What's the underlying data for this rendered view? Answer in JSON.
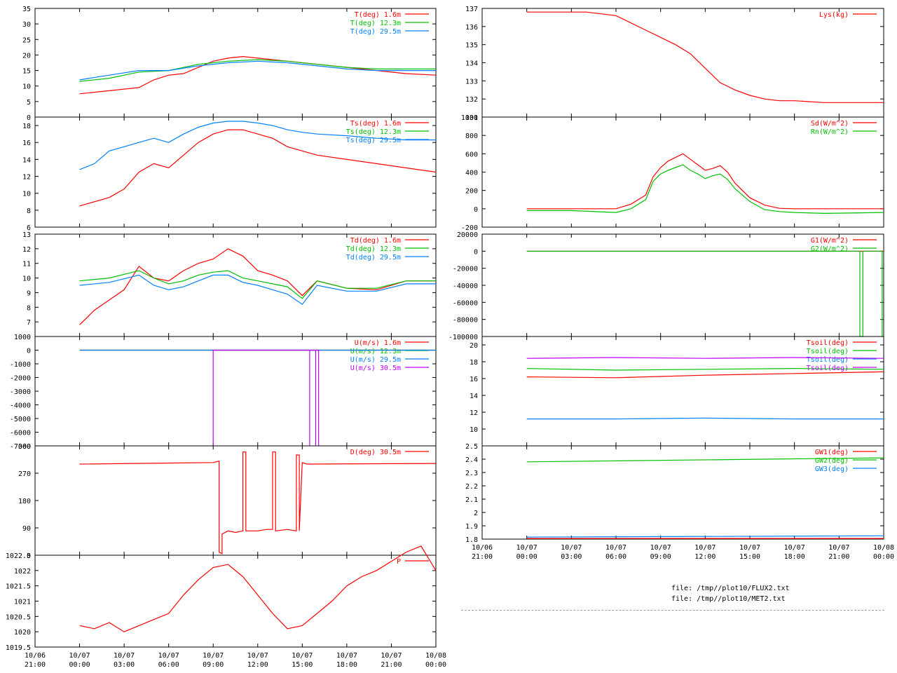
{
  "colors": {
    "red": "#ff0000",
    "green": "#00c000",
    "blue": "#0080ff",
    "purple": "#c000ff",
    "teal": "#008080"
  },
  "x_axis": {
    "ticks": [
      {
        "t": -3,
        "date": "10/06",
        "time": "21:00"
      },
      {
        "t": 0,
        "date": "10/07",
        "time": "00:00"
      },
      {
        "t": 3,
        "date": "10/07",
        "time": "03:00"
      },
      {
        "t": 6,
        "date": "10/07",
        "time": "06:00"
      },
      {
        "t": 9,
        "date": "10/07",
        "time": "09:00"
      },
      {
        "t": 12,
        "date": "10/07",
        "time": "12:00"
      },
      {
        "t": 15,
        "date": "10/07",
        "time": "15:00"
      },
      {
        "t": 18,
        "date": "10/07",
        "time": "18:00"
      },
      {
        "t": 21,
        "date": "10/07",
        "time": "21:00"
      },
      {
        "t": 24,
        "date": "10/08",
        "time": "00:00"
      }
    ]
  },
  "footer": {
    "file1": "file: /tmp//plot10/FLUX2.txt",
    "file2": "file: /tmp//plot10/MET2.txt"
  },
  "chart_data": [
    {
      "type": "line",
      "panel": "T",
      "ylim": [
        0,
        35
      ],
      "yticks": [
        "0",
        "5",
        "10",
        "15",
        "20",
        "25",
        "30",
        "35"
      ],
      "series": [
        {
          "name": "T(deg)  1.6m",
          "color": "#ff0000",
          "x": [
            0,
            2,
            4,
            5,
            6,
            7,
            8,
            9,
            10,
            11,
            12,
            13,
            14,
            15,
            16,
            18,
            20,
            22,
            24
          ],
          "y": [
            7.5,
            8.5,
            9.5,
            12,
            13.5,
            14,
            16,
            18,
            19,
            19.5,
            19,
            18.5,
            18,
            17.5,
            17,
            16,
            15,
            14,
            13.5
          ]
        },
        {
          "name": "T(deg) 12.3m",
          "color": "#00c000",
          "x": [
            0,
            2,
            4,
            6,
            8,
            10,
            12,
            14,
            16,
            18,
            20,
            22,
            24
          ],
          "y": [
            11.5,
            12.5,
            14.5,
            15,
            17,
            18,
            18.5,
            18,
            17,
            16,
            15.5,
            15.5,
            15.5
          ]
        },
        {
          "name": "T(deg) 29.5m",
          "color": "#0080ff",
          "x": [
            0,
            2,
            4,
            6,
            8,
            10,
            12,
            14,
            16,
            18,
            20,
            22,
            24
          ],
          "y": [
            12,
            13.5,
            15,
            15,
            16.5,
            17.5,
            18,
            17.5,
            16.5,
            15.5,
            15,
            15,
            15
          ]
        }
      ]
    },
    {
      "type": "line",
      "panel": "Ts",
      "ylim": [
        6,
        19
      ],
      "yticks": [
        "6",
        "8",
        "10",
        "12",
        "14",
        "16",
        "18"
      ],
      "series": [
        {
          "name": "Ts(deg)  1.6m",
          "color": "#ff0000",
          "x": [
            0,
            2,
            3,
            3.5,
            4,
            5,
            6,
            7,
            8,
            9,
            10,
            11,
            12,
            13,
            14,
            15,
            16,
            18,
            20,
            22,
            24
          ],
          "y": [
            8.5,
            9.5,
            10.5,
            11.5,
            12.5,
            13.5,
            13,
            14.5,
            16,
            17,
            17.5,
            17.5,
            17,
            16.5,
            15.5,
            15,
            14.5,
            14,
            13.5,
            13,
            12.5
          ]
        },
        {
          "name": "Ts(deg) 12.3m",
          "color": "#00c000",
          "x": [],
          "y": []
        },
        {
          "name": "Ts(deg) 29.5m",
          "color": "#0080ff",
          "x": [
            0,
            1,
            2,
            3,
            4,
            5,
            6,
            7,
            8,
            9,
            10,
            11,
            12,
            13,
            14,
            15,
            16,
            18,
            20,
            22,
            24
          ],
          "y": [
            12.8,
            13.5,
            15,
            15.5,
            16,
            16.5,
            16,
            17,
            17.8,
            18.3,
            18.5,
            18.5,
            18.3,
            18,
            17.5,
            17.2,
            17,
            16.8,
            16.5,
            16.3,
            16.3
          ]
        }
      ]
    },
    {
      "type": "line",
      "panel": "Td",
      "ylim": [
        6,
        13
      ],
      "yticks": [
        "7",
        "8",
        "9",
        "10",
        "11",
        "12",
        "13"
      ],
      "series": [
        {
          "name": "Td(deg)  1.6m",
          "color": "#ff0000",
          "x": [
            0,
            1,
            2,
            3,
            4,
            5,
            6,
            7,
            8,
            9,
            10,
            11,
            12,
            13,
            14,
            15,
            16,
            18,
            20,
            22,
            24
          ],
          "y": [
            6.8,
            7.8,
            8.5,
            9.2,
            10.8,
            10,
            9.8,
            10.5,
            11,
            11.3,
            12,
            11.5,
            10.5,
            10.2,
            9.8,
            8.8,
            9.8,
            9.3,
            9.2,
            9.8,
            9.8
          ]
        },
        {
          "name": "Td(deg) 12.3m",
          "color": "#00c000",
          "x": [
            0,
            2,
            4,
            5,
            6,
            7,
            8,
            9,
            10,
            11,
            12,
            13,
            14,
            15,
            16,
            18,
            20,
            22,
            24
          ],
          "y": [
            9.8,
            10,
            10.5,
            10,
            9.6,
            9.8,
            10.2,
            10.4,
            10.5,
            10,
            9.8,
            9.6,
            9.4,
            8.6,
            9.8,
            9.3,
            9.3,
            9.8,
            9.8
          ]
        },
        {
          "name": "Td(deg) 29.5m",
          "color": "#0080ff",
          "x": [
            0,
            2,
            4,
            5,
            6,
            7,
            8,
            9,
            10,
            11,
            12,
            13,
            14,
            15,
            16,
            18,
            20,
            22,
            24
          ],
          "y": [
            9.5,
            9.7,
            10.2,
            9.5,
            9.2,
            9.4,
            9.8,
            10.2,
            10.2,
            9.7,
            9.5,
            9.2,
            8.9,
            8.2,
            9.5,
            9.1,
            9.1,
            9.6,
            9.6
          ]
        }
      ]
    },
    {
      "type": "line",
      "panel": "U",
      "ylim": [
        -7000,
        1000
      ],
      "yticks": [
        "-7000",
        "-6000",
        "-5000",
        "-4000",
        "-3000",
        "-2000",
        "-1000",
        "0",
        "1000"
      ],
      "series": [
        {
          "name": "U(m/s)  1.6m",
          "color": "#ff0000",
          "x": [
            0,
            24
          ],
          "y": [
            0,
            0
          ]
        },
        {
          "name": "U(m/s) 12.3m",
          "color": "#00c000",
          "x": [
            0,
            24
          ],
          "y": [
            0,
            0
          ]
        },
        {
          "name": "U(m/s) 29.5m",
          "color": "#0080ff",
          "x": [
            0,
            24
          ],
          "y": [
            0,
            0
          ]
        },
        {
          "name": "U(m/s) 30.5m",
          "color": "#c000ff",
          "x": [
            9,
            9,
            9,
            15.5,
            15.5,
            15.5,
            15.9,
            15.9,
            15.9,
            16.1,
            16.1,
            16.1
          ],
          "y": [
            0,
            -7000,
            0,
            0,
            -7000,
            0,
            0,
            -7000,
            0,
            0,
            -7000,
            0
          ]
        }
      ]
    },
    {
      "type": "line",
      "panel": "D",
      "ylim": [
        0,
        360
      ],
      "yticks": [
        "0",
        "90",
        "180",
        "270",
        "360"
      ],
      "series": [
        {
          "name": "D(deg)  30.5m",
          "color": "#ff0000",
          "x": [
            0,
            9,
            9.4,
            9.4,
            9.6,
            9.6,
            10,
            10.5,
            11,
            11,
            11.2,
            11.2,
            12,
            12.6,
            13,
            13,
            13.2,
            13.2,
            14,
            14.6,
            14.6,
            14.8,
            14.8,
            15,
            15.3,
            24
          ],
          "y": [
            300,
            305,
            310,
            10,
            5,
            70,
            80,
            75,
            80,
            340,
            340,
            80,
            80,
            85,
            85,
            340,
            340,
            80,
            85,
            80,
            330,
            330,
            80,
            305,
            300,
            302
          ]
        }
      ]
    },
    {
      "type": "line",
      "panel": "P",
      "ylim": [
        1019.5,
        1022.5
      ],
      "yticks": [
        "1019.5",
        "1020",
        "1020.5",
        "1021",
        "1021.5",
        "1022",
        "1022.5"
      ],
      "series": [
        {
          "name": "P",
          "color": "#ff0000",
          "x": [
            0,
            1,
            2,
            3,
            4,
            5,
            6,
            7,
            8,
            9,
            10,
            11,
            12,
            13,
            14,
            15,
            16,
            17,
            18,
            19,
            20,
            21,
            22,
            23,
            24
          ],
          "y": [
            1020.2,
            1020.1,
            1020.3,
            1020,
            1020.2,
            1020.4,
            1020.6,
            1021.2,
            1021.7,
            1022.1,
            1022.2,
            1021.8,
            1021.2,
            1020.6,
            1020.1,
            1020.2,
            1020.6,
            1021,
            1021.5,
            1021.8,
            1022,
            1022.3,
            1022.6,
            1022.8,
            1022
          ]
        }
      ]
    },
    {
      "type": "line",
      "panel": "Lys",
      "ylim": [
        131,
        137
      ],
      "yticks": [
        "131",
        "132",
        "133",
        "134",
        "135",
        "136",
        "137"
      ],
      "series": [
        {
          "name": "Lys(kg)",
          "color": "#ff0000",
          "x": [
            0,
            4,
            6,
            8,
            10,
            11,
            12,
            13,
            14,
            15,
            16,
            17,
            18,
            20,
            22,
            24
          ],
          "y": [
            136.8,
            136.8,
            136.6,
            135.8,
            135,
            134.5,
            133.7,
            132.9,
            132.5,
            132.2,
            132,
            131.9,
            131.9,
            131.8,
            131.8,
            131.8
          ]
        }
      ]
    },
    {
      "type": "line",
      "panel": "Sd",
      "ylim": [
        -200,
        1000
      ],
      "yticks": [
        "-200",
        "0",
        "200",
        "400",
        "600",
        "800",
        "1000"
      ],
      "series": [
        {
          "name": "Sd(W/m^2)",
          "color": "#ff0000",
          "x": [
            0,
            6,
            7,
            8,
            8.5,
            9,
            9.5,
            10,
            10.5,
            11,
            11.5,
            12,
            12.5,
            13,
            13.5,
            14,
            15,
            16,
            17,
            18,
            24
          ],
          "y": [
            0,
            0,
            50,
            150,
            350,
            450,
            520,
            560,
            600,
            540,
            480,
            420,
            440,
            470,
            400,
            280,
            120,
            40,
            5,
            0,
            0
          ]
        },
        {
          "name": "Rn(W/m^2)",
          "color": "#00c000",
          "x": [
            0,
            3,
            6,
            7,
            8,
            8.5,
            9,
            9.5,
            10,
            10.5,
            11,
            11.5,
            12,
            12.5,
            13,
            13.5,
            14,
            15,
            16,
            17,
            18,
            20,
            24
          ],
          "y": [
            -20,
            -20,
            -40,
            0,
            100,
            300,
            380,
            420,
            450,
            480,
            420,
            380,
            330,
            360,
            380,
            320,
            220,
            80,
            -10,
            -30,
            -40,
            -50,
            -40
          ]
        }
      ]
    },
    {
      "type": "line",
      "panel": "G",
      "ylim": [
        -100000,
        20000
      ],
      "yticks": [
        "-100000",
        "-80000",
        "-60000",
        "-40000",
        "-20000",
        "0",
        "20000"
      ],
      "series": [
        {
          "name": "G1(W/m^2)",
          "color": "#ff0000",
          "x": [
            0,
            24
          ],
          "y": [
            0,
            0
          ]
        },
        {
          "name": "G2(W/m^2)",
          "color": "#00c000",
          "x": [
            0,
            22.4,
            22.4,
            22.6,
            22.6,
            23.9,
            23.9,
            24
          ],
          "y": [
            0,
            0,
            -100000,
            -100000,
            0,
            0,
            -100000,
            -100000
          ]
        }
      ]
    },
    {
      "type": "line",
      "panel": "Tsoil",
      "ylim": [
        8,
        21
      ],
      "yticks": [
        "10",
        "12",
        "14",
        "16",
        "18",
        "20"
      ],
      "series": [
        {
          "name": "Tsoil(deg)",
          "color": "#ff0000",
          "x": [
            0,
            6,
            12,
            18,
            24
          ],
          "y": [
            16.2,
            16.1,
            16.4,
            16.6,
            16.8
          ]
        },
        {
          "name": "Tsoil(deg)",
          "color": "#00c000",
          "x": [
            0,
            6,
            12,
            18,
            24
          ],
          "y": [
            17.2,
            17,
            17.1,
            17.2,
            17.1
          ]
        },
        {
          "name": "Tsoil(deg)",
          "color": "#0080ff",
          "x": [
            0,
            6,
            12,
            18,
            24
          ],
          "y": [
            11.2,
            11.2,
            11.3,
            11.2,
            11.2
          ]
        },
        {
          "name": "Tsoil(deg)",
          "color": "#c000ff",
          "x": [
            0,
            6,
            12,
            18,
            24
          ],
          "y": [
            18.4,
            18.5,
            18.4,
            18.5,
            18.4
          ]
        }
      ]
    },
    {
      "type": "line",
      "panel": "GW",
      "ylim": [
        1.8,
        2.5
      ],
      "yticks": [
        "1.8",
        "1.9",
        "2",
        "2.1",
        "2.2",
        "2.3",
        "2.4",
        "2.5"
      ],
      "series": [
        {
          "name": "GW1(deg)",
          "color": "#ff0000",
          "x": [
            0,
            24
          ],
          "y": [
            1.805,
            1.805
          ]
        },
        {
          "name": "GW2(deg)",
          "color": "#00c000",
          "x": [
            0,
            24
          ],
          "y": [
            2.38,
            2.41
          ]
        },
        {
          "name": "GW3(deg)",
          "color": "#0080ff",
          "x": [
            0,
            24
          ],
          "y": [
            1.815,
            1.825
          ]
        }
      ]
    }
  ]
}
